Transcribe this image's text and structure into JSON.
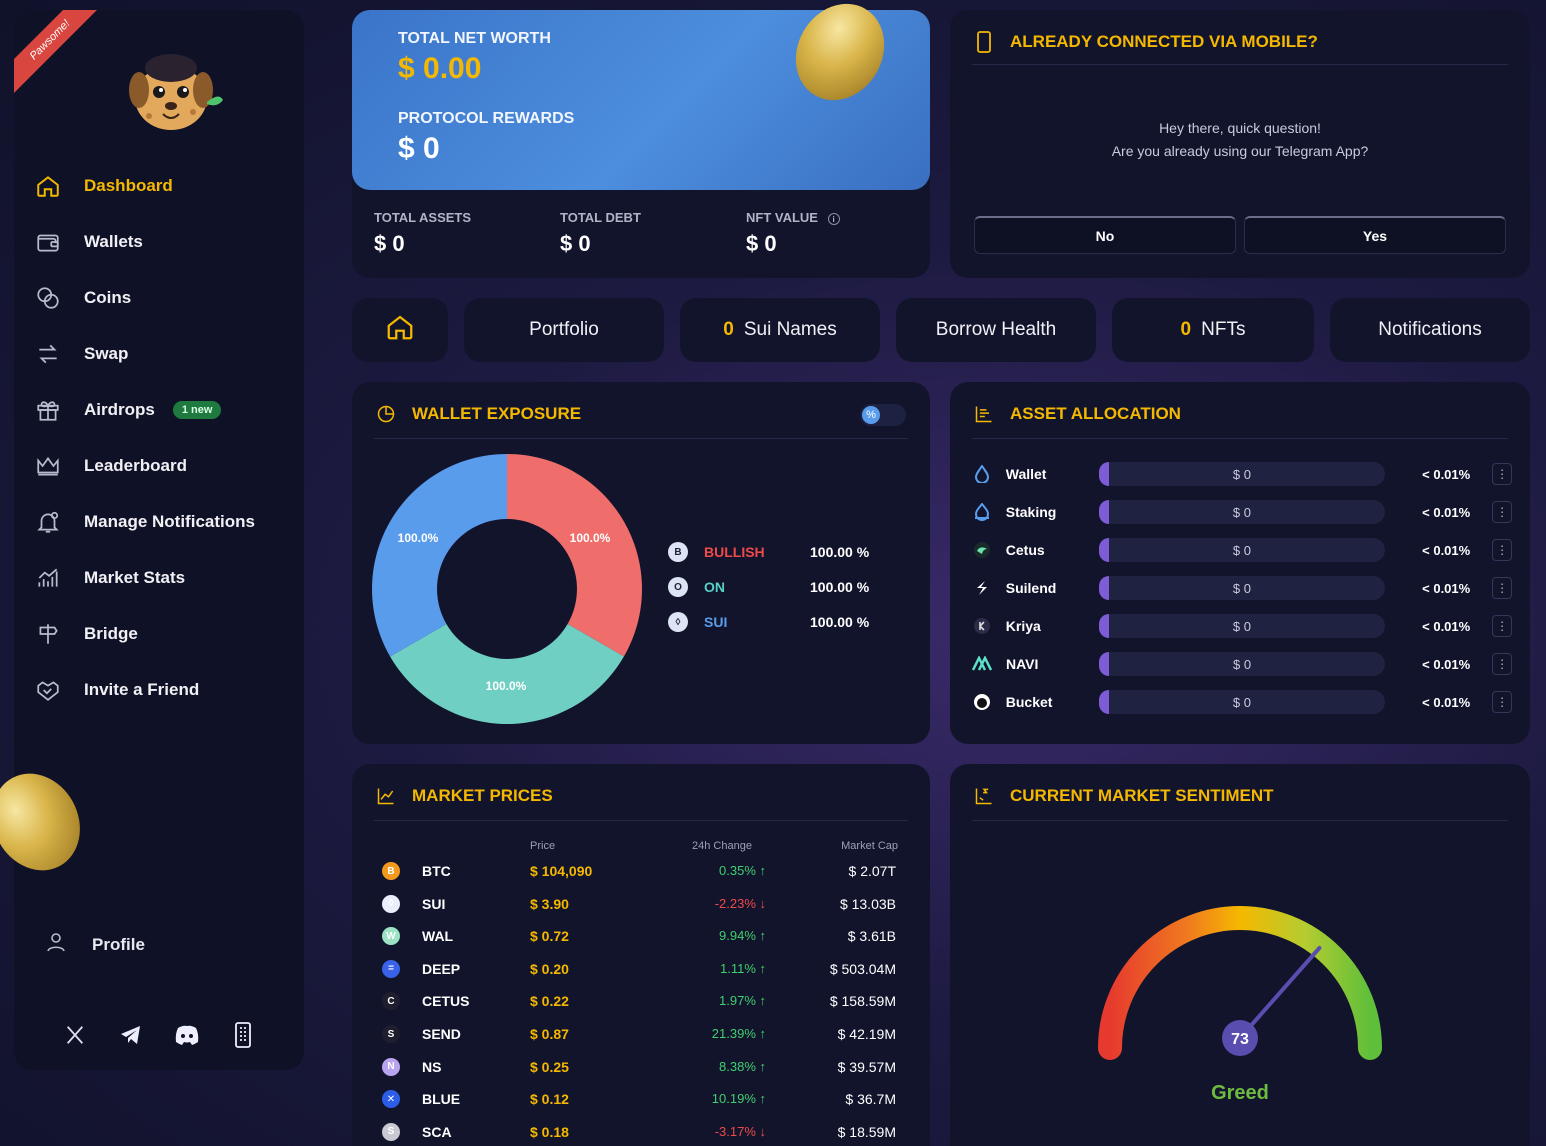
{
  "ribbon": "Pawsome!",
  "sidebar": {
    "items": [
      {
        "label": "Dashboard",
        "icon": "home-icon"
      },
      {
        "label": "Wallets",
        "icon": "wallet-icon"
      },
      {
        "label": "Coins",
        "icon": "coins-icon"
      },
      {
        "label": "Swap",
        "icon": "swap-icon"
      },
      {
        "label": "Airdrops",
        "icon": "gift-icon",
        "badge": "1 new"
      },
      {
        "label": "Leaderboard",
        "icon": "crown-icon"
      },
      {
        "label": "Manage Notifications",
        "icon": "bell-icon"
      },
      {
        "label": "Market Stats",
        "icon": "chart-icon"
      },
      {
        "label": "Bridge",
        "icon": "signpost-icon"
      },
      {
        "label": "Invite a Friend",
        "icon": "handshake-icon"
      }
    ],
    "profile": "Profile",
    "socials": [
      "x-icon",
      "telegram-icon",
      "discord-icon",
      "mobile-icon"
    ]
  },
  "networth": {
    "total_label": "TOTAL NET WORTH",
    "total_value": "$ 0.00",
    "rewards_label": "PROTOCOL REWARDS",
    "rewards_value": "$ 0"
  },
  "summary": {
    "assets_label": "TOTAL ASSETS",
    "assets_value": "$ 0",
    "debt_label": "TOTAL DEBT",
    "debt_value": "$ 0",
    "nft_label": "NFT VALUE",
    "nft_value": "$ 0"
  },
  "mobile": {
    "title": "ALREADY CONNECTED VIA MOBILE?",
    "line1": "Hey there, quick question!",
    "line2": "Are you already using our Telegram App?",
    "no": "No",
    "yes": "Yes"
  },
  "tabs": {
    "portfolio": "Portfolio",
    "sui_names_count": "0",
    "sui_names": "Sui Names",
    "borrow_health": "Borrow Health",
    "nfts_count": "0",
    "nfts": "NFTs",
    "notifications": "Notifications"
  },
  "exposure": {
    "title": "WALLET EXPOSURE",
    "slices": [
      {
        "label": "100.0%",
        "color": "#ef6e6b"
      },
      {
        "label": "100.0%",
        "color": "#6fcfc3"
      },
      {
        "label": "100.0%",
        "color": "#5a9cec"
      }
    ],
    "legend": [
      {
        "symbol": "B",
        "name": "BULLISH",
        "pct": "100.00 %",
        "color": "#ef4a4a"
      },
      {
        "symbol": "O",
        "name": "ON",
        "pct": "100.00 %",
        "color": "#56d1c4"
      },
      {
        "symbol": "◊",
        "name": "SUI",
        "pct": "100.00 %",
        "color": "#5a9cec"
      }
    ]
  },
  "allocation": {
    "title": "ASSET ALLOCATION",
    "rows": [
      {
        "name": "Wallet",
        "value": "$ 0",
        "share": "< 0.01%"
      },
      {
        "name": "Staking",
        "value": "$ 0",
        "share": "< 0.01%"
      },
      {
        "name": "Cetus",
        "value": "$ 0",
        "share": "< 0.01%"
      },
      {
        "name": "Suilend",
        "value": "$ 0",
        "share": "< 0.01%"
      },
      {
        "name": "Kriya",
        "value": "$ 0",
        "share": "< 0.01%"
      },
      {
        "name": "NAVI",
        "value": "$ 0",
        "share": "< 0.01%"
      },
      {
        "name": "Bucket",
        "value": "$ 0",
        "share": "< 0.01%"
      }
    ]
  },
  "market": {
    "title": "MARKET PRICES",
    "headers": {
      "price": "Price",
      "change": "24h Change",
      "cap": "Market Cap"
    },
    "rows": [
      {
        "sym": "BTC",
        "price": "$ 104,090",
        "change": "0.35% ↑",
        "dir": "up",
        "cap": "$ 2.07T",
        "color": "#f39a1e",
        "glyph": "B"
      },
      {
        "sym": "SUI",
        "price": "$ 3.90",
        "change": "-2.23% ↓",
        "dir": "down",
        "cap": "$ 13.03B",
        "color": "#e8eefc",
        "glyph": "◊"
      },
      {
        "sym": "WAL",
        "price": "$ 0.72",
        "change": "9.94% ↑",
        "dir": "up",
        "cap": "$ 3.61B",
        "color": "#9be3c4",
        "glyph": "W"
      },
      {
        "sym": "DEEP",
        "price": "$ 0.20",
        "change": "1.11% ↑",
        "dir": "up",
        "cap": "$ 503.04M",
        "color": "#3a62e8",
        "glyph": "="
      },
      {
        "sym": "CETUS",
        "price": "$ 0.22",
        "change": "1.97% ↑",
        "dir": "up",
        "cap": "$ 158.59M",
        "color": "#1e1e2e",
        "glyph": "C"
      },
      {
        "sym": "SEND",
        "price": "$ 0.87",
        "change": "21.39% ↑",
        "dir": "up",
        "cap": "$ 42.19M",
        "color": "#1e1e2e",
        "glyph": "S"
      },
      {
        "sym": "NS",
        "price": "$ 0.25",
        "change": "8.38% ↑",
        "dir": "up",
        "cap": "$ 39.57M",
        "color": "#b9a4f0",
        "glyph": "N"
      },
      {
        "sym": "BLUE",
        "price": "$ 0.12",
        "change": "10.19% ↑",
        "dir": "up",
        "cap": "$ 36.7M",
        "color": "#2b5de6",
        "glyph": "✕"
      },
      {
        "sym": "SCA",
        "price": "$ 0.18",
        "change": "-3.17% ↓",
        "dir": "down",
        "cap": "$ 18.59M",
        "color": "#c9c9d4",
        "glyph": "S"
      }
    ]
  },
  "sentiment": {
    "title": "CURRENT MARKET SENTIMENT",
    "value": "73",
    "label": "Greed",
    "label_color": "#6dbb3f"
  },
  "colors": {
    "accent": "#f5b800",
    "panel": "#12142c",
    "up": "#3fcf6e",
    "down": "#ef4a4a"
  }
}
